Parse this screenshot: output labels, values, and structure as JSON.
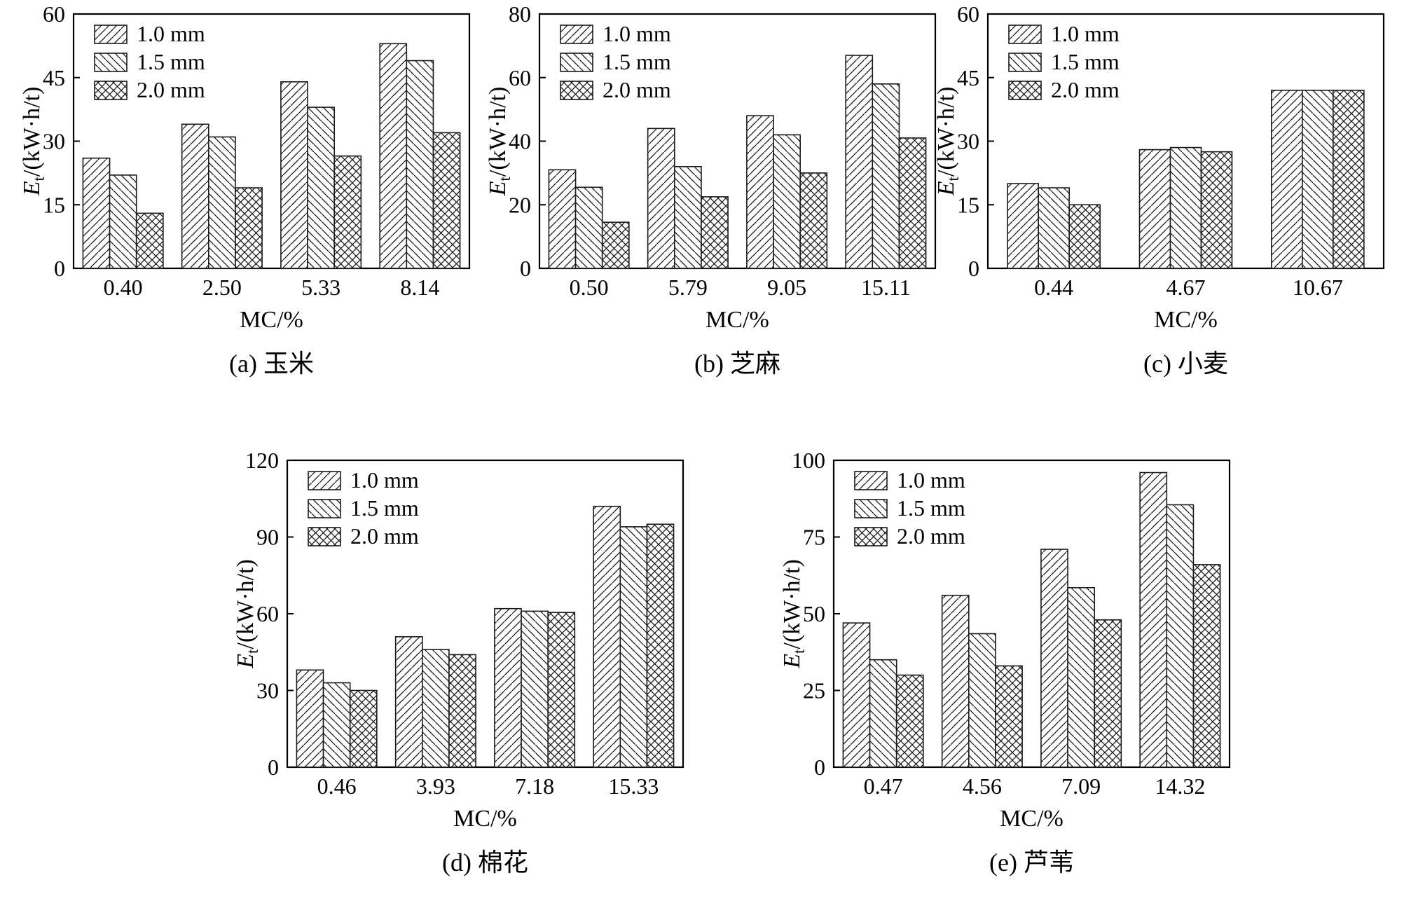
{
  "figure": {
    "description": "Five grouped bar charts of specific energy consumption versus moisture content for different screen sizes",
    "shared_xlabel": "MC/%",
    "shared_ylabel": "E_t/(kW·h/t)",
    "legend_labels": [
      "1.0 mm",
      "1.5 mm",
      "2.0 mm"
    ]
  },
  "colors": {
    "background": "#ffffff",
    "axis": "#000000",
    "bar_outline": "#1a1a1a",
    "hatch": "#1a1a1a"
  },
  "chart_data": [
    {
      "type": "bar",
      "caption": "(a) 玉米",
      "xlabel": "MC/%",
      "ylabel": "E_t/(kW·h/t)",
      "ylim": [
        0,
        60
      ],
      "yticks": [
        0,
        15,
        30,
        45,
        60
      ],
      "categories": [
        "0.40",
        "2.50",
        "5.33",
        "8.14"
      ],
      "legend_position": "top-left",
      "grid": false,
      "series": [
        {
          "name": "1.0 mm",
          "hatch": "diag-up",
          "values": [
            26,
            34,
            44,
            53
          ]
        },
        {
          "name": "1.5 mm",
          "hatch": "diag-down",
          "values": [
            22,
            31,
            38,
            49
          ]
        },
        {
          "name": "2.0 mm",
          "hatch": "cross",
          "values": [
            13,
            19,
            26.5,
            32
          ]
        }
      ]
    },
    {
      "type": "bar",
      "caption": "(b) 芝麻",
      "xlabel": "MC/%",
      "ylabel": "E_t/(kW·h/t)",
      "ylim": [
        0,
        80
      ],
      "yticks": [
        0,
        20,
        40,
        60,
        80
      ],
      "categories": [
        "0.50",
        "5.79",
        "9.05",
        "15.11"
      ],
      "legend_position": "top-left",
      "grid": false,
      "series": [
        {
          "name": "1.0 mm",
          "hatch": "diag-up",
          "values": [
            31,
            44,
            48,
            67
          ]
        },
        {
          "name": "1.5 mm",
          "hatch": "diag-down",
          "values": [
            25.5,
            32,
            42,
            58
          ]
        },
        {
          "name": "2.0 mm",
          "hatch": "cross",
          "values": [
            14.5,
            22.5,
            30,
            41
          ]
        }
      ]
    },
    {
      "type": "bar",
      "caption": "(c) 小麦",
      "xlabel": "MC/%",
      "ylabel": "E_t/(kW·h/t)",
      "ylim": [
        0,
        60
      ],
      "yticks": [
        0,
        15,
        30,
        45,
        60
      ],
      "categories": [
        "0.44",
        "4.67",
        "10.67"
      ],
      "legend_position": "top-left",
      "grid": false,
      "series": [
        {
          "name": "1.0 mm",
          "hatch": "diag-up",
          "values": [
            20,
            28,
            42
          ]
        },
        {
          "name": "1.5 mm",
          "hatch": "diag-down",
          "values": [
            19,
            28.5,
            42
          ]
        },
        {
          "name": "2.0 mm",
          "hatch": "cross",
          "values": [
            15,
            27.5,
            42
          ]
        }
      ]
    },
    {
      "type": "bar",
      "caption": "(d) 棉花",
      "xlabel": "MC/%",
      "ylabel": "E_t/(kW·h/t)",
      "ylim": [
        0,
        120
      ],
      "yticks": [
        0,
        30,
        60,
        90,
        120
      ],
      "categories": [
        "0.46",
        "3.93",
        "7.18",
        "15.33"
      ],
      "legend_position": "top-left",
      "grid": false,
      "series": [
        {
          "name": "1.0 mm",
          "hatch": "diag-up",
          "values": [
            38,
            51,
            62,
            102
          ]
        },
        {
          "name": "1.5 mm",
          "hatch": "diag-down",
          "values": [
            33,
            46,
            61,
            94
          ]
        },
        {
          "name": "2.0 mm",
          "hatch": "cross",
          "values": [
            30,
            44,
            60.5,
            95
          ]
        }
      ]
    },
    {
      "type": "bar",
      "caption": "(e) 芦苇",
      "xlabel": "MC/%",
      "ylabel": "E_t/(kW·h/t)",
      "ylim": [
        0,
        100
      ],
      "yticks": [
        0,
        25,
        50,
        75,
        100
      ],
      "categories": [
        "0.47",
        "4.56",
        "7.09",
        "14.32"
      ],
      "legend_position": "top-left",
      "grid": false,
      "series": [
        {
          "name": "1.0 mm",
          "hatch": "diag-up",
          "values": [
            47,
            56,
            71,
            96
          ]
        },
        {
          "name": "1.5 mm",
          "hatch": "diag-down",
          "values": [
            35,
            43.5,
            58.5,
            85.5
          ]
        },
        {
          "name": "2.0 mm",
          "hatch": "cross",
          "values": [
            30,
            33,
            48,
            66
          ]
        }
      ]
    }
  ]
}
